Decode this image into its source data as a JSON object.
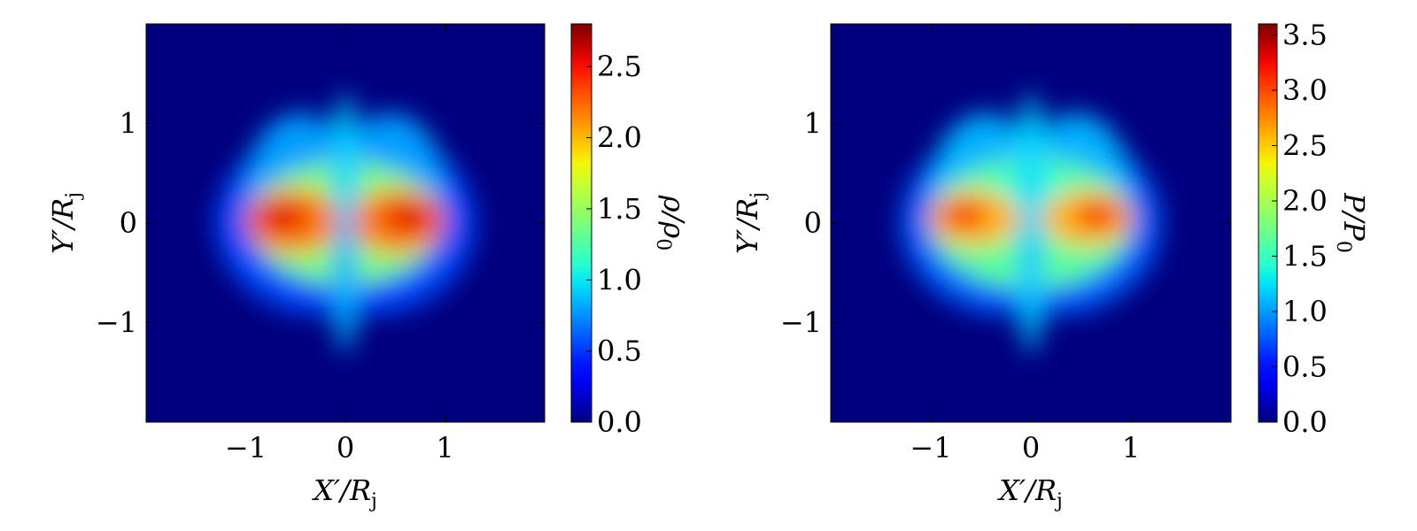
{
  "chart_data": [
    {
      "type": "heatmap",
      "title": "",
      "xlabel": "X′/R",
      "xlabel_sub": "j",
      "ylabel": "Y′/R",
      "ylabel_sub": "j",
      "xlim": [
        -2,
        2
      ],
      "ylim": [
        -2,
        2
      ],
      "x_ticks": [
        -1,
        0,
        1
      ],
      "x_tick_labels": [
        "−1",
        "0",
        "1"
      ],
      "y_ticks": [
        -1,
        0,
        1
      ],
      "y_tick_labels": [
        "−1",
        "0",
        "1"
      ],
      "colormap": "jet",
      "colorbar": {
        "label": "ρ/ρ",
        "label_sub": "0",
        "range": [
          0,
          2.8
        ],
        "ticks": [
          0,
          0.5,
          1,
          1.5,
          2,
          2.5
        ],
        "tick_labels": [
          "0.0",
          "0.5",
          "1.0",
          "1.5",
          "2.0",
          "2.5"
        ]
      },
      "grid": false
    },
    {
      "type": "heatmap",
      "title": "",
      "xlabel": "X′/R",
      "xlabel_sub": "j",
      "ylabel": "Y′/R",
      "ylabel_sub": "j",
      "xlim": [
        -2,
        2
      ],
      "ylim": [
        -2,
        2
      ],
      "x_ticks": [
        -1,
        0,
        1
      ],
      "x_tick_labels": [
        "−1",
        "0",
        "1"
      ],
      "y_ticks": [
        -1,
        0,
        1
      ],
      "y_tick_labels": [
        "−1",
        "0",
        "1"
      ],
      "colormap": "jet",
      "colorbar": {
        "label": "P/P",
        "label_sub": "0",
        "range": [
          0,
          3.6
        ],
        "ticks": [
          0,
          0.5,
          1,
          1.5,
          2,
          2.5,
          3,
          3.5
        ],
        "tick_labels": [
          "0.0",
          "0.5",
          "1.0",
          "1.5",
          "2.0",
          "2.5",
          "3.0",
          "3.5"
        ]
      },
      "grid": false
    }
  ]
}
